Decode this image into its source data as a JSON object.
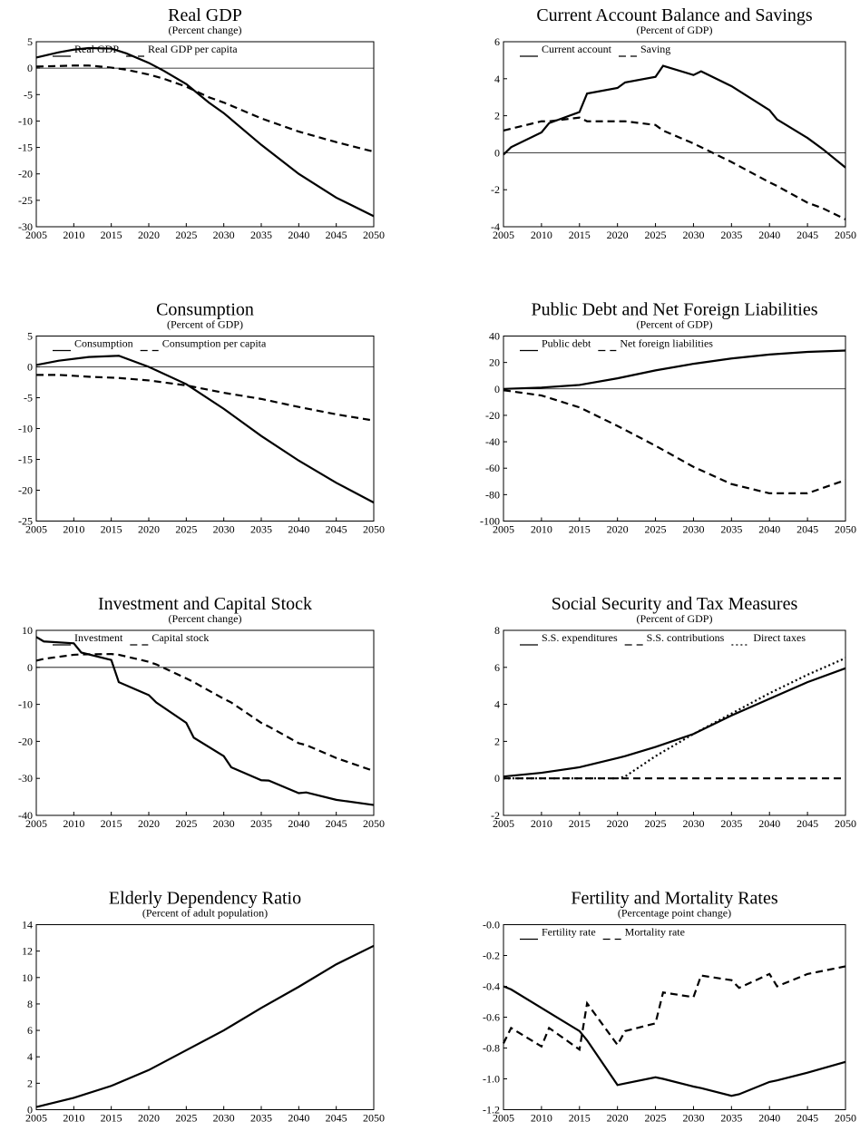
{
  "chart_data": [
    {
      "type": "line",
      "title": "Real GDP",
      "subtitle": "(Percent change)",
      "x": [
        2005,
        2008,
        2010,
        2012,
        2015,
        2017,
        2020,
        2022,
        2025,
        2028,
        2030,
        2035,
        2040,
        2045,
        2050
      ],
      "series": [
        {
          "name": "Real GDP",
          "color": "#000000",
          "dash": "solid",
          "values": [
            2,
            3,
            3.5,
            3.8,
            3.7,
            2.8,
            1,
            -0.5,
            -3,
            -6.5,
            -8.5,
            -14.5,
            -20,
            -24.5,
            -28
          ]
        },
        {
          "name": "Real GDP per capita",
          "color": "#000000",
          "dash": "dashed",
          "values": [
            0.3,
            0.4,
            0.5,
            0.5,
            0.1,
            -0.3,
            -1.2,
            -2,
            -3.5,
            -5.5,
            -6.5,
            -9.5,
            -12,
            -14,
            -15.8
          ]
        }
      ],
      "xlim": [
        2005,
        2050
      ],
      "xticks": [
        2005,
        2010,
        2015,
        2020,
        2025,
        2030,
        2035,
        2040,
        2045,
        2050
      ],
      "ylim": [
        -30,
        5
      ],
      "yticks": [
        -30,
        -25,
        -20,
        -15,
        -10,
        -5,
        0,
        5
      ],
      "zero_line": true,
      "legend": "top-left"
    },
    {
      "type": "line",
      "title": "Current Account Balance and Savings",
      "subtitle": "(Percent of GDP)",
      "x": [
        2005,
        2006,
        2010,
        2011,
        2015,
        2016,
        2020,
        2021,
        2025,
        2026,
        2030,
        2031,
        2035,
        2040,
        2041,
        2045,
        2047,
        2050
      ],
      "series": [
        {
          "name": "Current account",
          "color": "#000000",
          "dash": "solid",
          "values": [
            -0.1,
            0.3,
            1.1,
            1.6,
            2.2,
            3.2,
            3.5,
            3.8,
            4.1,
            4.7,
            4.2,
            4.4,
            3.6,
            2.3,
            1.8,
            0.8,
            0.2,
            -0.8
          ]
        },
        {
          "name": "Saving",
          "color": "#000000",
          "dash": "dashed",
          "values": [
            1.2,
            1.3,
            1.7,
            1.7,
            1.9,
            1.7,
            1.7,
            1.7,
            1.5,
            1.2,
            0.5,
            0.3,
            -0.5,
            -1.6,
            -1.8,
            -2.7,
            -3.0,
            -3.6
          ]
        }
      ],
      "xlim": [
        2005,
        2050
      ],
      "xticks": [
        2005,
        2010,
        2015,
        2020,
        2025,
        2030,
        2035,
        2040,
        2045,
        2050
      ],
      "ylim": [
        -4,
        6
      ],
      "yticks": [
        -4,
        -2,
        0,
        2,
        4,
        6
      ],
      "zero_line": true,
      "legend": "top-left"
    },
    {
      "type": "line",
      "title": "Consumption",
      "subtitle": "(Percent of GDP)",
      "x": [
        2005,
        2008,
        2012,
        2016,
        2020,
        2025,
        2030,
        2035,
        2040,
        2045,
        2050
      ],
      "series": [
        {
          "name": "Consumption",
          "color": "#000000",
          "dash": "solid",
          "values": [
            0.3,
            1,
            1.6,
            1.8,
            0,
            -2.8,
            -6.8,
            -11.2,
            -15.2,
            -18.8,
            -22
          ]
        },
        {
          "name": "Consumption per capita",
          "color": "#000000",
          "dash": "dashed",
          "values": [
            -1.3,
            -1.3,
            -1.6,
            -1.8,
            -2.2,
            -3,
            -4.2,
            -5.2,
            -6.5,
            -7.7,
            -8.7
          ]
        }
      ],
      "xlim": [
        2005,
        2050
      ],
      "xticks": [
        2005,
        2010,
        2015,
        2020,
        2025,
        2030,
        2035,
        2040,
        2045,
        2050
      ],
      "ylim": [
        -25,
        5
      ],
      "yticks": [
        -25,
        -20,
        -15,
        -10,
        -5,
        0,
        5
      ],
      "zero_line": true,
      "legend": "top-left"
    },
    {
      "type": "line",
      "title": "Public Debt and Net Foreign Liabilities",
      "subtitle": "(Percent of GDP)",
      "x": [
        2005,
        2010,
        2015,
        2020,
        2025,
        2030,
        2035,
        2040,
        2045,
        2050
      ],
      "series": [
        {
          "name": "Public debt",
          "color": "#000000",
          "dash": "solid",
          "values": [
            0,
            1,
            3,
            8,
            14,
            19,
            23,
            26,
            28,
            29
          ]
        },
        {
          "name": "Net foreign liabilities",
          "color": "#000000",
          "dash": "dashed",
          "values": [
            -1,
            -5,
            -14,
            -28,
            -43,
            -59,
            -72,
            -79,
            -79,
            -69
          ]
        }
      ],
      "xlim": [
        2005,
        2050
      ],
      "xticks": [
        2005,
        2010,
        2015,
        2020,
        2025,
        2030,
        2035,
        2040,
        2045,
        2050
      ],
      "ylim": [
        -100,
        40
      ],
      "yticks": [
        -100,
        -80,
        -60,
        -40,
        -20,
        0,
        20,
        40
      ],
      "zero_line": true,
      "legend": "top-left"
    },
    {
      "type": "line",
      "title": "Investment and Capital Stock",
      "subtitle": "(Percent change)",
      "x": [
        2005,
        2006,
        2010,
        2011,
        2015,
        2016,
        2020,
        2021,
        2025,
        2026,
        2030,
        2031,
        2035,
        2036,
        2040,
        2041,
        2045,
        2050
      ],
      "series": [
        {
          "name": "Investment",
          "color": "#000000",
          "dash": "solid",
          "values": [
            8.2,
            7,
            6.5,
            4,
            2,
            -4,
            -7.5,
            -9.5,
            -15,
            -19,
            -24,
            -27,
            -30.5,
            -30.6,
            -34,
            -33.8,
            -35.8,
            -37.2
          ]
        },
        {
          "name": "Capital stock",
          "color": "#000000",
          "dash": "dashed",
          "values": [
            1.8,
            2.3,
            3.4,
            3.5,
            3.6,
            3.4,
            1.5,
            0.8,
            -3,
            -4,
            -8.5,
            -9.5,
            -15,
            -16,
            -20.5,
            -21,
            -24.5,
            -28
          ]
        }
      ],
      "xlim": [
        2005,
        2050
      ],
      "xticks": [
        2005,
        2010,
        2015,
        2020,
        2025,
        2030,
        2035,
        2040,
        2045,
        2050
      ],
      "ylim": [
        -40,
        10
      ],
      "yticks": [
        -40,
        -30,
        -20,
        -10,
        0,
        10
      ],
      "zero_line": true,
      "legend": "top-left"
    },
    {
      "type": "line",
      "title": "Social Security and Tax Measures",
      "subtitle": "(Percent of GDP)",
      "x": [
        2005,
        2010,
        2015,
        2020,
        2021,
        2025,
        2030,
        2035,
        2040,
        2045,
        2050
      ],
      "series": [
        {
          "name": "S.S. expenditures",
          "color": "#000000",
          "dash": "solid",
          "values": [
            0.1,
            0.3,
            0.6,
            1.1,
            1.2,
            1.7,
            2.4,
            3.4,
            4.3,
            5.2,
            5.95
          ]
        },
        {
          "name": "S.S. contributions",
          "color": "#000000",
          "dash": "dashed",
          "values": [
            0,
            0,
            0,
            0,
            0,
            0,
            0,
            0,
            0,
            0,
            0
          ]
        },
        {
          "name": "Direct taxes",
          "color": "#000000",
          "dash": "dotted",
          "values": [
            0,
            0,
            0,
            0,
            0.1,
            1.2,
            2.4,
            3.5,
            4.6,
            5.6,
            6.5
          ]
        }
      ],
      "xlim": [
        2005,
        2050
      ],
      "xticks": [
        2005,
        2010,
        2015,
        2020,
        2025,
        2030,
        2035,
        2040,
        2045,
        2050
      ],
      "ylim": [
        -2,
        8
      ],
      "yticks": [
        -2,
        0,
        2,
        4,
        6,
        8
      ],
      "zero_line": false,
      "legend": "top-left"
    },
    {
      "type": "line",
      "title": "Elderly Dependency Ratio",
      "subtitle": "(Percent of adult population)",
      "x": [
        2005,
        2010,
        2015,
        2020,
        2025,
        2030,
        2035,
        2040,
        2045,
        2050
      ],
      "values": [
        0.2,
        0.9,
        1.8,
        3.0,
        4.5,
        6.0,
        7.7,
        9.3,
        11.0,
        12.4
      ],
      "color": "#000000",
      "xlim": [
        2005,
        2050
      ],
      "xticks": [
        2005,
        2010,
        2015,
        2020,
        2025,
        2030,
        2035,
        2040,
        2045,
        2050
      ],
      "ylim": [
        0,
        14
      ],
      "yticks": [
        0,
        2,
        4,
        6,
        8,
        10,
        12,
        14
      ],
      "zero_line": false
    },
    {
      "type": "line",
      "title": "Fertility and Mortality Rates",
      "subtitle": "(Percentage point change)",
      "x": [
        2005,
        2006,
        2010,
        2011,
        2015,
        2016,
        2020,
        2021,
        2025,
        2026,
        2030,
        2031,
        2035,
        2036,
        2040,
        2041,
        2045,
        2050
      ],
      "series": [
        {
          "name": "Fertility rate",
          "color": "#000000",
          "dash": "solid",
          "values": [
            -0.4,
            -0.42,
            -0.54,
            -0.57,
            -0.69,
            -0.75,
            -1.04,
            -1.03,
            -0.99,
            -1.0,
            -1.05,
            -1.06,
            -1.11,
            -1.1,
            -1.02,
            -1.01,
            -0.96,
            -0.89
          ]
        },
        {
          "name": "Mortality rate",
          "color": "#000000",
          "dash": "dashed",
          "values": [
            -0.77,
            -0.67,
            -0.79,
            -0.67,
            -0.81,
            -0.51,
            -0.78,
            -0.69,
            -0.64,
            -0.44,
            -0.47,
            -0.33,
            -0.36,
            -0.41,
            -0.32,
            -0.4,
            -0.32,
            -0.27
          ]
        }
      ],
      "xlim": [
        2005,
        2050
      ],
      "xticks": [
        2005,
        2010,
        2015,
        2020,
        2025,
        2030,
        2035,
        2040,
        2045,
        2050
      ],
      "ylim": [
        -1.2,
        0
      ],
      "yticks": [
        {
          "value": -1.2,
          "label": "-1.2"
        },
        {
          "value": -1,
          "label": "-1.0"
        },
        -0.8,
        -0.6,
        -0.4,
        -0.2,
        {
          "value": 0,
          "label": "-0.0"
        }
      ],
      "zero_line": false,
      "legend": "top-left"
    }
  ]
}
